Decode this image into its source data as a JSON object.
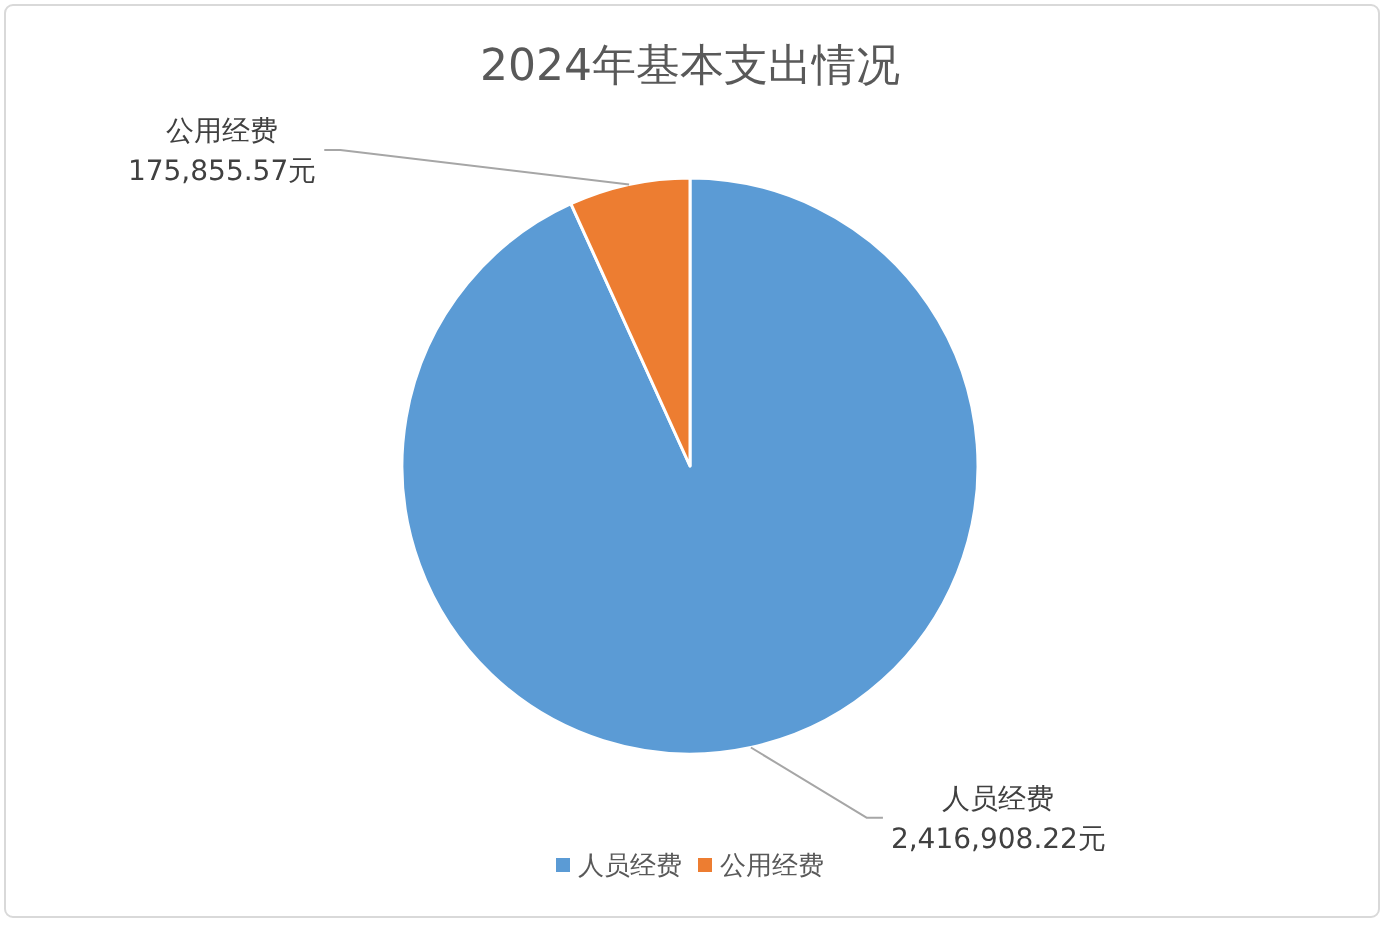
{
  "chart_data": {
    "type": "pie",
    "title": "2024年基本支出情况",
    "categories": [
      "人员经费",
      "公用经费"
    ],
    "values": [
      2416908.22,
      175855.57
    ],
    "colors": [
      "#5b9bd5",
      "#ed7d31"
    ],
    "value_labels": [
      "2,416,908.22元",
      "175,855.57元"
    ],
    "legend": "bottom"
  }
}
